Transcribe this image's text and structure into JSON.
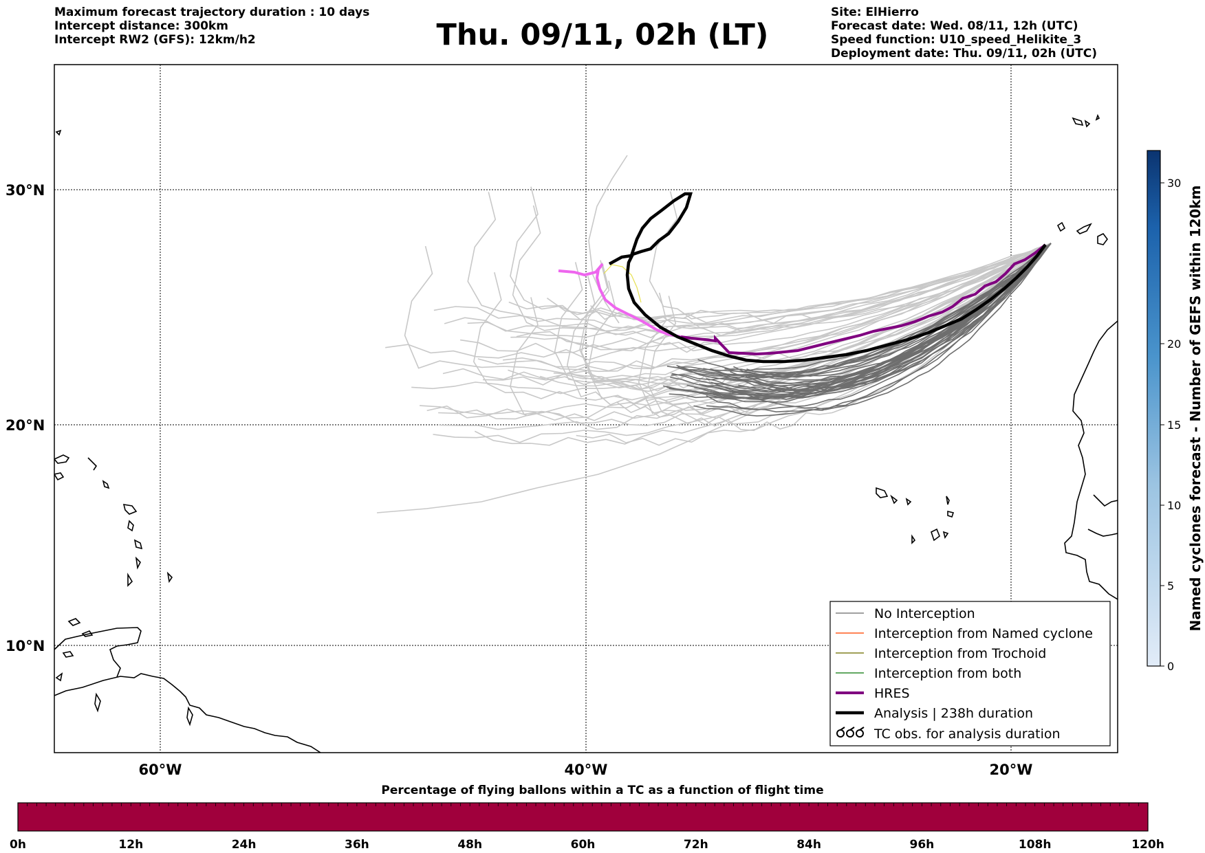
{
  "header_left": [
    "Maximum forecast trajectory duration : 10 days",
    "Intercept distance: 300km",
    "Intercept RW2 (GFS):  12km/h2"
  ],
  "title": "Thu. 09/11, 02h (LT)",
  "header_right": [
    "Site: ElHierro",
    "Forecast date: Wed. 08/11, 12h (UTC)",
    "Speed function: U10_speed_Helikite_3",
    "Deployment date: Thu. 09/11, 02h (UTC)"
  ],
  "map": {
    "lat_labels": [
      "30°N",
      "20°N",
      "10°N"
    ],
    "lon_labels": [
      "60°W",
      "40°W",
      "20°W"
    ]
  },
  "legend": {
    "items": [
      {
        "label": "No Interception",
        "color": "#808080"
      },
      {
        "label": "Interception from Named cyclone",
        "color": "#ff5a1f"
      },
      {
        "label": "Interception from Trochoid",
        "color": "#808020"
      },
      {
        "label": "Interception from both",
        "color": "#2e8b2e"
      },
      {
        "label": "HRES",
        "color": "#800080"
      },
      {
        "label": "Analysis | 238h duration",
        "color": "#000000"
      },
      {
        "label": "TC obs. for analysis duration",
        "color": "#000000"
      }
    ]
  },
  "colorbar": {
    "label": "Named cyclones forecast - Number of GEFS within 120km",
    "ticks": [
      "0",
      "5",
      "10",
      "15",
      "20",
      "30"
    ]
  },
  "time_bar": {
    "title": "Percentage of flying ballons within a TC as a function of flight time",
    "ticks": [
      "0h",
      "12h",
      "24h",
      "36h",
      "48h",
      "60h",
      "72h",
      "84h",
      "96h",
      "108h",
      "120h"
    ],
    "color": "#a0003c"
  }
}
